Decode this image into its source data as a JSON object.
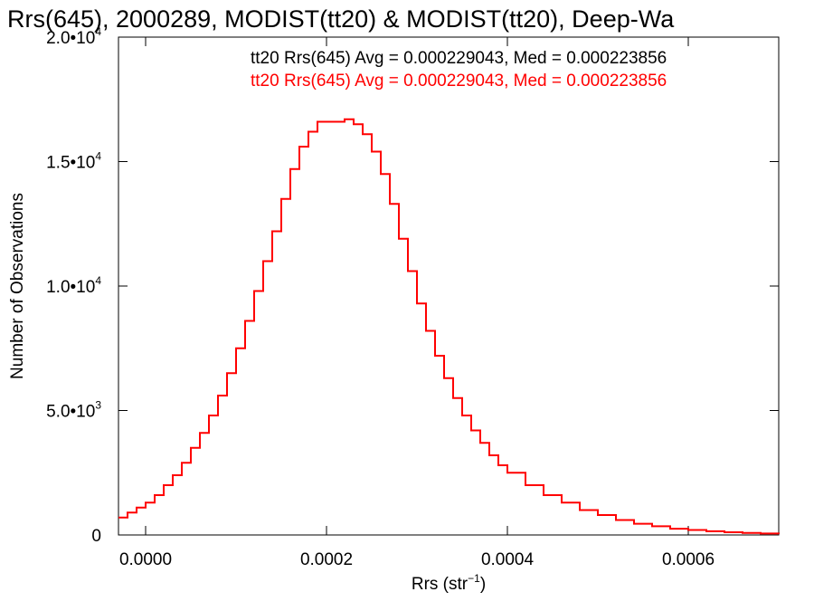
{
  "chart_data": {
    "type": "line",
    "title": "Rrs(645), 2000289, MODIST(tt20) & MODIST(tt20), Deep-Wa",
    "xlabel_main": "Rrs (str",
    "xlabel_sup": "−1",
    "xlabel_close": ")",
    "ylabel": "Number of Observations",
    "xlim": [
      -3e-05,
      0.0007
    ],
    "ylim": [
      0,
      20000
    ],
    "x_ticks": [
      {
        "value": 0.0,
        "label": "0.0000"
      },
      {
        "value": 0.0002,
        "label": "0.0002"
      },
      {
        "value": 0.0004,
        "label": "0.0004"
      },
      {
        "value": 0.0006,
        "label": "0.0006"
      }
    ],
    "y_ticks": [
      {
        "value": 0,
        "mant": "0",
        "exp": ""
      },
      {
        "value": 5000,
        "mant": "5.0•10",
        "exp": "3"
      },
      {
        "value": 10000,
        "mant": "1.0•10",
        "exp": "4"
      },
      {
        "value": 15000,
        "mant": "1.5•10",
        "exp": "4"
      },
      {
        "value": 20000,
        "mant": "2.0•10",
        "exp": "4"
      }
    ],
    "annotations": [
      {
        "text": "tt20 Rrs(645) Avg = 0.000229043, Med = 0.000223856",
        "color": "#000000"
      },
      {
        "text": "tt20 Rrs(645) Avg = 0.000229043, Med = 0.000223856",
        "color": "#ff0000"
      }
    ],
    "series": [
      {
        "color": "#ff0000",
        "style": "step",
        "x": [
          -3e-05,
          -2e-05,
          -1e-05,
          0.0,
          1e-05,
          2e-05,
          3e-05,
          4e-05,
          5e-05,
          6e-05,
          7e-05,
          8e-05,
          9e-05,
          0.0001,
          0.00011,
          0.00012,
          0.00013,
          0.00014,
          0.00015,
          0.00016,
          0.00017,
          0.00018,
          0.00019,
          0.0002,
          0.00021,
          0.00022,
          0.00023,
          0.00024,
          0.00025,
          0.00026,
          0.00027,
          0.00028,
          0.00029,
          0.0003,
          0.00031,
          0.00032,
          0.00033,
          0.00034,
          0.00035,
          0.00036,
          0.00037,
          0.00038,
          0.00039,
          0.0004,
          0.00042,
          0.00044,
          0.00046,
          0.00048,
          0.0005,
          0.00052,
          0.00054,
          0.00056,
          0.00058,
          0.0006,
          0.00062,
          0.00064,
          0.00066,
          0.00068,
          0.0007
        ],
        "y": [
          700,
          900,
          1100,
          1300,
          1600,
          2000,
          2400,
          2900,
          3500,
          4100,
          4800,
          5600,
          6500,
          7500,
          8600,
          9800,
          11000,
          12200,
          13500,
          14700,
          15600,
          16200,
          16600,
          16600,
          16600,
          16700,
          16500,
          16100,
          15400,
          14500,
          13300,
          11900,
          10600,
          9300,
          8200,
          7200,
          6300,
          5500,
          4800,
          4200,
          3700,
          3200,
          2800,
          2500,
          2000,
          1600,
          1300,
          1000,
          800,
          600,
          450,
          350,
          250,
          200,
          150,
          110,
          80,
          60,
          40
        ]
      }
    ]
  }
}
